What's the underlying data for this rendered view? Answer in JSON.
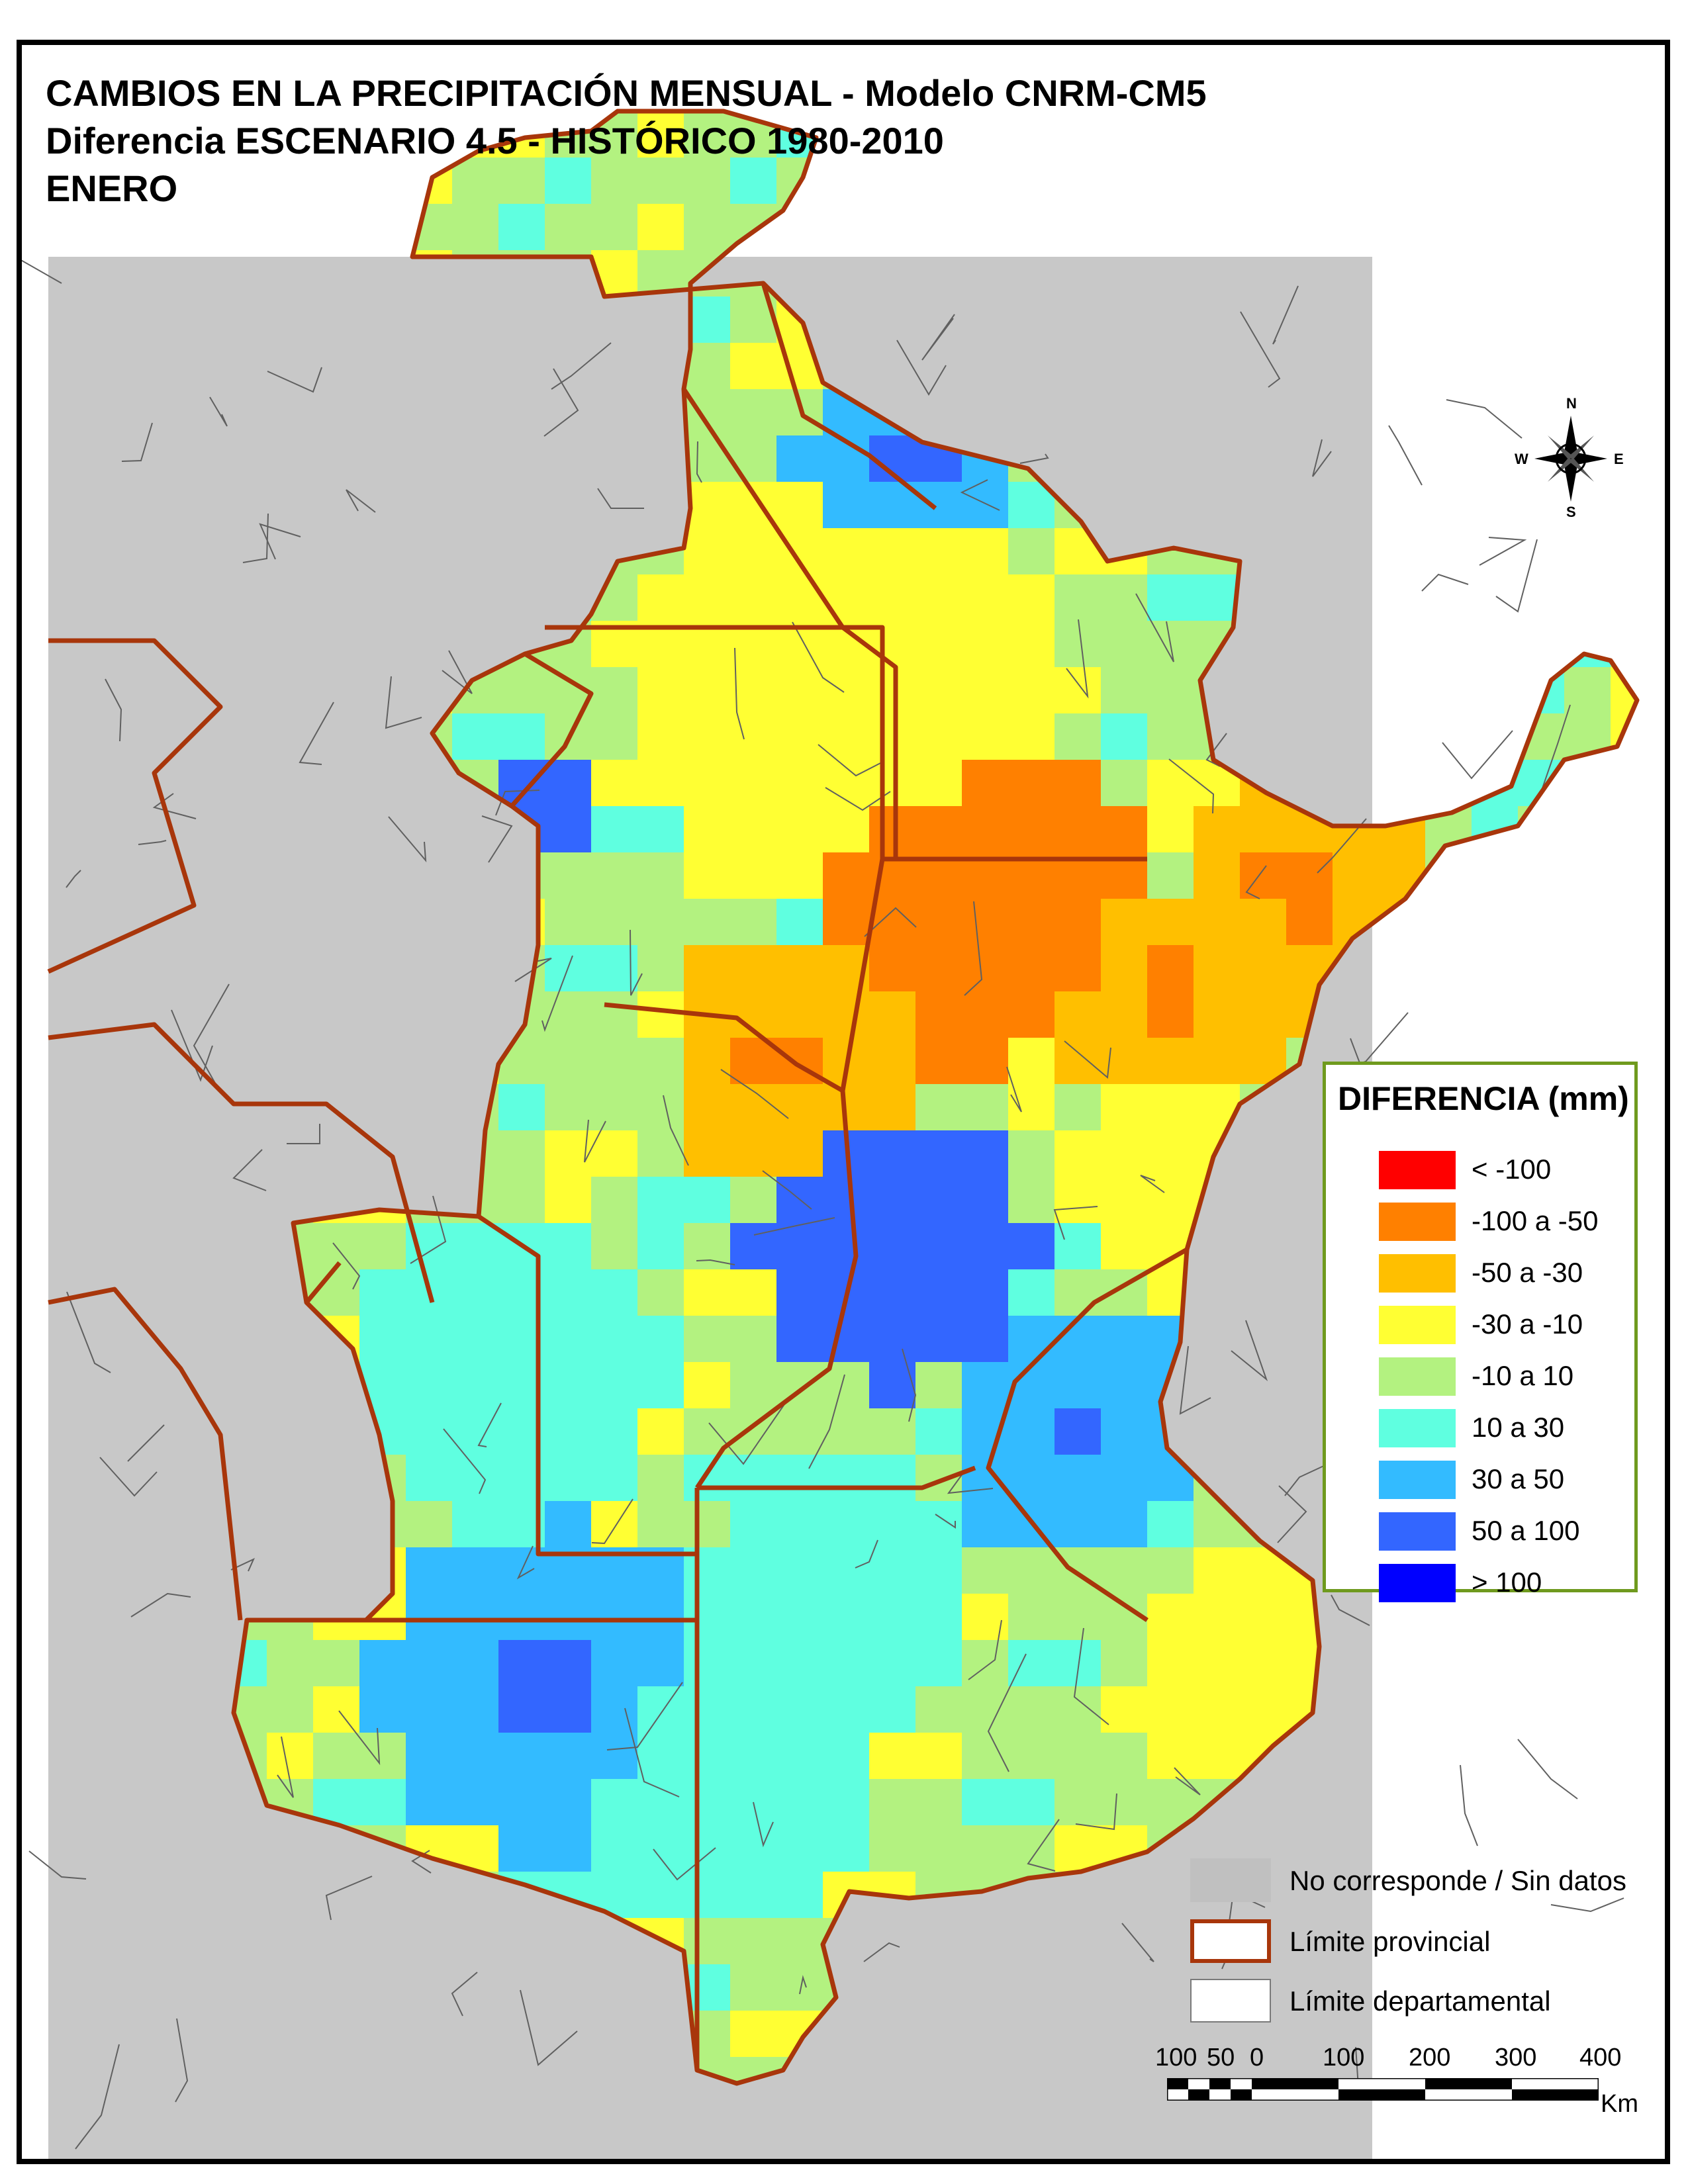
{
  "title": {
    "line1": "CAMBIOS EN LA PRECIPITACIÓN MENSUAL - Modelo CNRM-CM5",
    "line2": "Diferencia ESCENARIO 4.5 - HISTÓRICO 1980-2010",
    "line3": "ENERO"
  },
  "compass": {
    "n": "N",
    "s": "S",
    "e": "E",
    "w": "W"
  },
  "legend": {
    "title": "DIFERENCIA (mm)",
    "classes": [
      {
        "label": "< -100",
        "color": "#ff0000"
      },
      {
        "label": "-100 a -50",
        "color": "#ff8000"
      },
      {
        "label": "-50 a -30",
        "color": "#ffbf00"
      },
      {
        "label": "-30 a -10",
        "color": "#ffff33"
      },
      {
        "label": "-10 a 10",
        "color": "#b3f280"
      },
      {
        "label": "10 a 30",
        "color": "#5fffe0"
      },
      {
        "label": "30 a 50",
        "color": "#33bbff"
      },
      {
        "label": "50 a 100",
        "color": "#3366ff"
      },
      {
        "label": "> 100",
        "color": "#0000ff"
      }
    ]
  },
  "bottom_legend": {
    "no_data": {
      "label": "No corresponde / Sin datos",
      "color": "#c0c0c0"
    },
    "provincial": {
      "label": "Límite provincial",
      "color": "#a8360b"
    },
    "departmental": {
      "label": "Límite departamental",
      "color": "#7a7a7a"
    }
  },
  "scale_bar": {
    "ticks": [
      "100",
      "50",
      "0",
      "100",
      "200",
      "300",
      "400"
    ],
    "unit": "Km"
  }
}
